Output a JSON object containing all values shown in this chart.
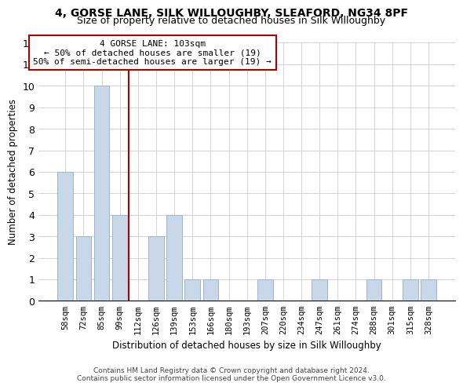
{
  "title1": "4, GORSE LANE, SILK WILLOUGHBY, SLEAFORD, NG34 8PF",
  "title2": "Size of property relative to detached houses in Silk Willoughby",
  "xlabel": "Distribution of detached houses by size in Silk Willoughby",
  "ylabel": "Number of detached properties",
  "bar_labels": [
    "58sqm",
    "72sqm",
    "85sqm",
    "99sqm",
    "112sqm",
    "126sqm",
    "139sqm",
    "153sqm",
    "166sqm",
    "180sqm",
    "193sqm",
    "207sqm",
    "220sqm",
    "234sqm",
    "247sqm",
    "261sqm",
    "274sqm",
    "288sqm",
    "301sqm",
    "315sqm",
    "328sqm"
  ],
  "bar_values": [
    6,
    3,
    10,
    4,
    0,
    3,
    4,
    1,
    1,
    0,
    0,
    1,
    0,
    0,
    1,
    0,
    0,
    1,
    0,
    1,
    1
  ],
  "bar_color": "#c8d8e8",
  "bar_edge_color": "#9ab5cc",
  "reference_line_color": "#aa0000",
  "annotation_title": "4 GORSE LANE: 103sqm",
  "annotation_line1": "← 50% of detached houses are smaller (19)",
  "annotation_line2": "50% of semi-detached houses are larger (19) →",
  "annotation_box_color": "#ffffff",
  "annotation_box_edge_color": "#aa0000",
  "ylim": [
    0,
    12
  ],
  "yticks": [
    0,
    1,
    2,
    3,
    4,
    5,
    6,
    7,
    8,
    9,
    10,
    11,
    12
  ],
  "footnote1": "Contains HM Land Registry data © Crown copyright and database right 2024.",
  "footnote2": "Contains public sector information licensed under the Open Government Licence v3.0."
}
